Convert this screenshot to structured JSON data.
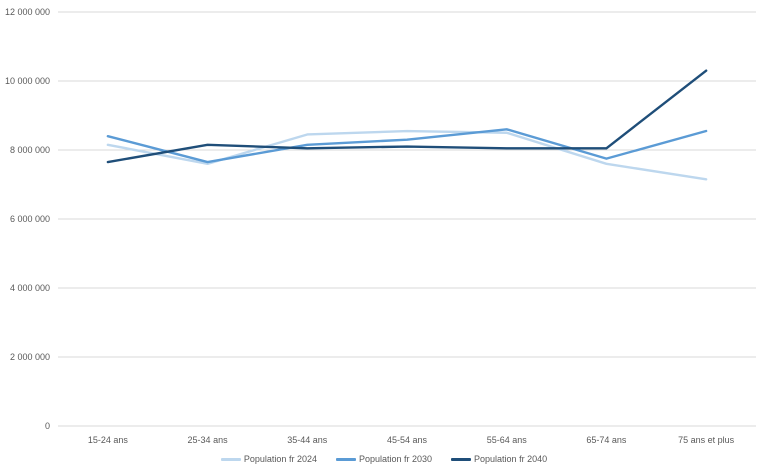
{
  "chart_data": {
    "type": "line",
    "title": "",
    "xlabel": "",
    "ylabel": "",
    "categories": [
      "15-24 ans",
      "25-34 ans",
      "35-44 ans",
      "45-54 ans",
      "55-64 ans",
      "65-74 ans",
      "75 ans et plus"
    ],
    "series": [
      {
        "name": "Population fr 2024",
        "color": "#BDD7EE",
        "values": [
          8150000,
          7600000,
          8450000,
          8550000,
          8500000,
          7600000,
          7150000
        ]
      },
      {
        "name": "Population fr 2030",
        "color": "#5B9BD5",
        "values": [
          8400000,
          7650000,
          8150000,
          8300000,
          8600000,
          7750000,
          8550000
        ]
      },
      {
        "name": "Population fr 2040",
        "color": "#1F4E79",
        "values": [
          7650000,
          8150000,
          8050000,
          8100000,
          8050000,
          8050000,
          10300000
        ]
      }
    ],
    "ylim": [
      0,
      12000000
    ],
    "yticks": [
      {
        "value": 0,
        "label": "0"
      },
      {
        "value": 2000000,
        "label": "2 000 000"
      },
      {
        "value": 4000000,
        "label": "4 000 000"
      },
      {
        "value": 6000000,
        "label": "6 000 000"
      },
      {
        "value": 8000000,
        "label": "8 000 000"
      },
      {
        "value": 10000000,
        "label": "10 000 000"
      },
      {
        "value": 12000000,
        "label": "12 000 000"
      }
    ],
    "grid": "horizontal",
    "legend_position": "bottom"
  },
  "style": {
    "grid_color": "#D9D9D9",
    "axis_text_color": "#595959",
    "background": "#FFFFFF"
  }
}
